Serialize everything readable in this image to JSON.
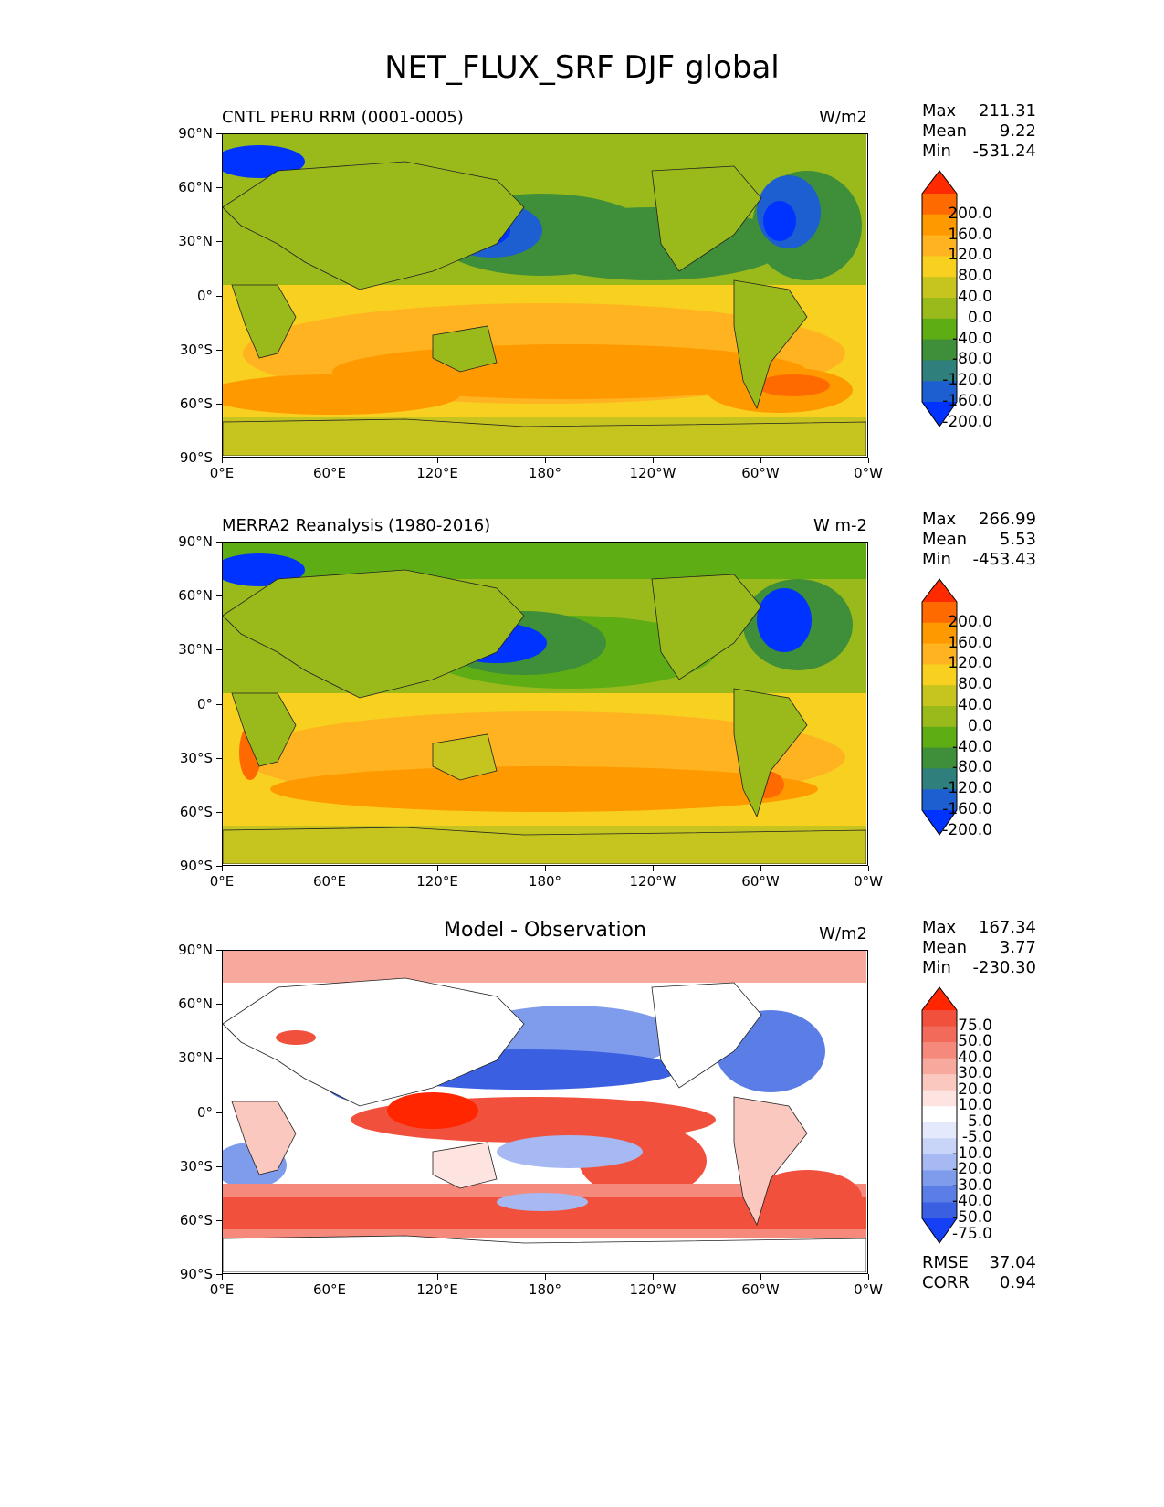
{
  "title": "NET_FLUX_SRF DJF global",
  "panels": [
    {
      "name": "model",
      "title": "CNTL PERU RRM (0001-0005)",
      "units": "W/m2",
      "stats": {
        "max_label": "Max",
        "max": "211.31",
        "mean_label": "Mean",
        "mean": "9.22",
        "min_label": "Min",
        "min": "-531.24"
      },
      "colorbar_labels": [
        "200.0",
        "160.0",
        "120.0",
        "80.0",
        "40.0",
        "0.0",
        "-40.0",
        "-80.0",
        "-120.0",
        "-160.0",
        "-200.0"
      ],
      "colorbar_colors": [
        "#ff2a00",
        "#ff6a00",
        "#ff9900",
        "#ffb320",
        "#f7d020",
        "#c6c41f",
        "#9aba1c",
        "#5fad14",
        "#3e8e3a",
        "#2f7f7c",
        "#1d5fd0",
        "#0033ff"
      ]
    },
    {
      "name": "observation",
      "title": "MERRA2 Reanalysis (1980-2016)",
      "units": "W m-2",
      "stats": {
        "max_label": "Max",
        "max": "266.99",
        "mean_label": "Mean",
        "mean": "5.53",
        "min_label": "Min",
        "min": "-453.43"
      },
      "colorbar_labels": [
        "200.0",
        "160.0",
        "120.0",
        "80.0",
        "40.0",
        "0.0",
        "-40.0",
        "-80.0",
        "-120.0",
        "-160.0",
        "-200.0"
      ],
      "colorbar_colors": [
        "#ff2a00",
        "#ff6a00",
        "#ff9900",
        "#ffb320",
        "#f7d020",
        "#c6c41f",
        "#9aba1c",
        "#5fad14",
        "#3e8e3a",
        "#2f7f7c",
        "#1d5fd0",
        "#0033ff"
      ]
    },
    {
      "name": "difference",
      "title": "Model - Observation",
      "units": "W/m2",
      "stats": {
        "max_label": "Max",
        "max": "167.34",
        "mean_label": "Mean",
        "mean": "3.77",
        "min_label": "Min",
        "min": "-230.30"
      },
      "colorbar_labels": [
        "75.0",
        "50.0",
        "40.0",
        "30.0",
        "20.0",
        "10.0",
        "5.0",
        "-5.0",
        "-10.0",
        "-20.0",
        "-30.0",
        "-40.0",
        "-50.0",
        "-75.0"
      ],
      "colorbar_colors": [
        "#ff2600",
        "#f0503c",
        "#f26a5a",
        "#f58a7c",
        "#f8a99d",
        "#fbc8c0",
        "#fde4e0",
        "#ffffff",
        "#e4eafc",
        "#c8d4f8",
        "#a6b9f2",
        "#7f9cec",
        "#5a7de6",
        "#3a5fe0",
        "#1540f5"
      ],
      "rmse_label": "RMSE",
      "rmse": "37.04",
      "corr_label": "CORR",
      "corr": "0.94"
    }
  ],
  "axes": {
    "y_ticks": [
      "90°N",
      "60°N",
      "30°N",
      "0°",
      "30°S",
      "60°S",
      "90°S"
    ],
    "x_ticks": [
      "0°E",
      "60°E",
      "120°E",
      "180°",
      "120°W",
      "60°W",
      "0°W"
    ]
  }
}
